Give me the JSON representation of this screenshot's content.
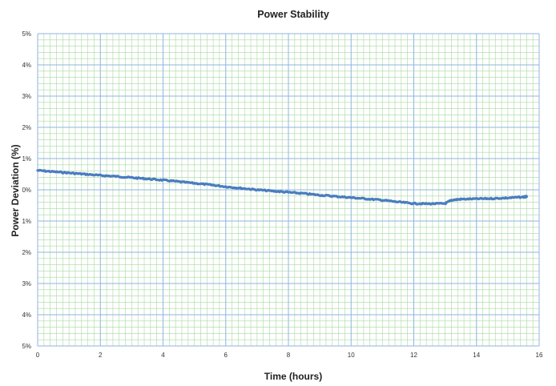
{
  "chart_data": {
    "type": "line",
    "title": "Power Stability",
    "xlabel": "Time (hours)",
    "ylabel": "Power Deviation (%)",
    "xlim": [
      0,
      16
    ],
    "ylim": [
      -5,
      5
    ],
    "x_ticks": [
      0,
      2,
      4,
      6,
      8,
      10,
      12,
      14,
      16
    ],
    "x_tick_labels": [
      "0",
      "2",
      "4",
      "6",
      "8",
      "10",
      "12",
      "14",
      "16"
    ],
    "y_ticks": [
      5,
      4,
      3,
      2,
      1,
      0,
      -1,
      -2,
      -3,
      -4,
      -5
    ],
    "y_tick_labels": [
      "5%",
      "4%",
      "3%",
      "2%",
      "1%",
      "0%",
      "1%",
      "2%",
      "3%",
      "4%",
      "5%"
    ],
    "grid": true,
    "legend": "none",
    "colors": {
      "line": "#4a7cc0",
      "major_grid": "#8fb6df",
      "minor_grid": "#a8d8a0"
    },
    "series": [
      {
        "x": [
          0,
          0.5,
          1,
          1.5,
          2,
          2.5,
          3,
          3.5,
          4,
          4.5,
          5,
          5.5,
          6,
          6.5,
          7,
          7.5,
          8,
          8.5,
          9,
          9.5,
          10,
          10.5,
          11,
          11.5,
          12,
          12.5,
          13,
          13.2,
          13.5,
          14,
          14.5,
          15,
          15.5,
          15.6
        ],
        "y": [
          0.62,
          0.58,
          0.54,
          0.5,
          0.46,
          0.43,
          0.39,
          0.35,
          0.31,
          0.26,
          0.21,
          0.16,
          0.1,
          0.05,
          0.0,
          -0.04,
          -0.08,
          -0.12,
          -0.17,
          -0.21,
          -0.25,
          -0.29,
          -0.33,
          -0.39,
          -0.44,
          -0.45,
          -0.44,
          -0.33,
          -0.3,
          -0.29,
          -0.28,
          -0.26,
          -0.23,
          -0.22
        ]
      }
    ]
  }
}
